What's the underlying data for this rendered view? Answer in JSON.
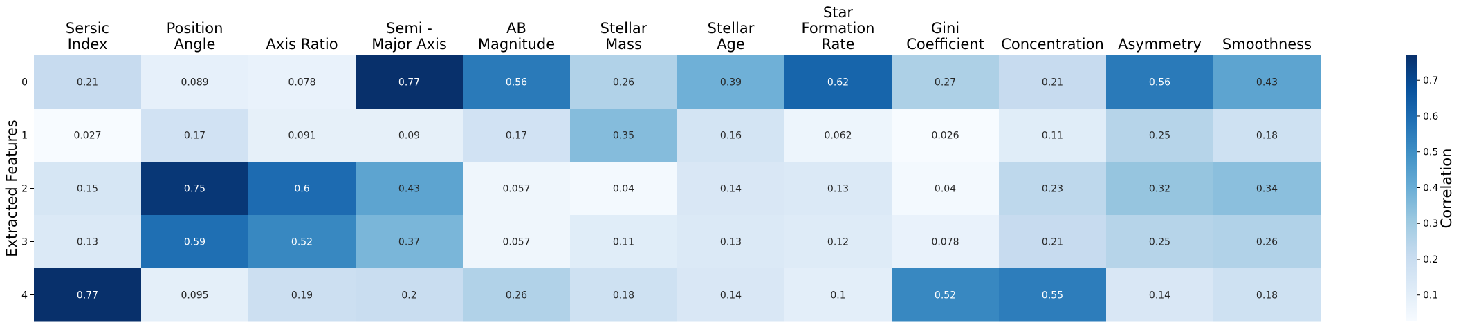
{
  "chart_data": {
    "type": "heatmap",
    "columns": [
      [
        "Sersic",
        "Index"
      ],
      [
        "Position",
        "Angle"
      ],
      [
        "Axis Ratio"
      ],
      [
        "Semi -",
        "Major Axis"
      ],
      [
        "AB",
        "Magnitude"
      ],
      [
        "Stellar",
        "Mass"
      ],
      [
        "Stellar",
        "Age"
      ],
      [
        "Star",
        "Formation",
        "Rate"
      ],
      [
        "Gini",
        "Coefficient"
      ],
      [
        "Concentration"
      ],
      [
        "Asymmetry"
      ],
      [
        "Smoothness"
      ]
    ],
    "rows": [
      "0",
      "1",
      "2",
      "3",
      "4"
    ],
    "ylabel": "Extracted Features",
    "values": [
      [
        0.21,
        0.089,
        0.078,
        0.77,
        0.56,
        0.26,
        0.39,
        0.62,
        0.27,
        0.21,
        0.56,
        0.43
      ],
      [
        0.027,
        0.17,
        0.091,
        0.09,
        0.17,
        0.35,
        0.16,
        0.062,
        0.026,
        0.11,
        0.25,
        0.18
      ],
      [
        0.15,
        0.75,
        0.6,
        0.43,
        0.057,
        0.04,
        0.14,
        0.13,
        0.04,
        0.23,
        0.32,
        0.34
      ],
      [
        0.13,
        0.59,
        0.52,
        0.37,
        0.057,
        0.11,
        0.13,
        0.12,
        0.078,
        0.21,
        0.25,
        0.26
      ],
      [
        0.77,
        0.095,
        0.19,
        0.2,
        0.26,
        0.18,
        0.14,
        0.1,
        0.52,
        0.55,
        0.14,
        0.18
      ]
    ],
    "colorbar": {
      "label": "Correlation",
      "ticks": [
        0.1,
        0.2,
        0.3,
        0.4,
        0.5,
        0.6,
        0.7
      ],
      "vmin": 0.026,
      "vmax": 0.77
    },
    "colormap": "Blues",
    "colormap_stops": [
      "#f7fbff",
      "#deebf7",
      "#c6dbef",
      "#9ecae1",
      "#6baed6",
      "#4292c6",
      "#2171b5",
      "#08519c",
      "#08306b"
    ]
  }
}
